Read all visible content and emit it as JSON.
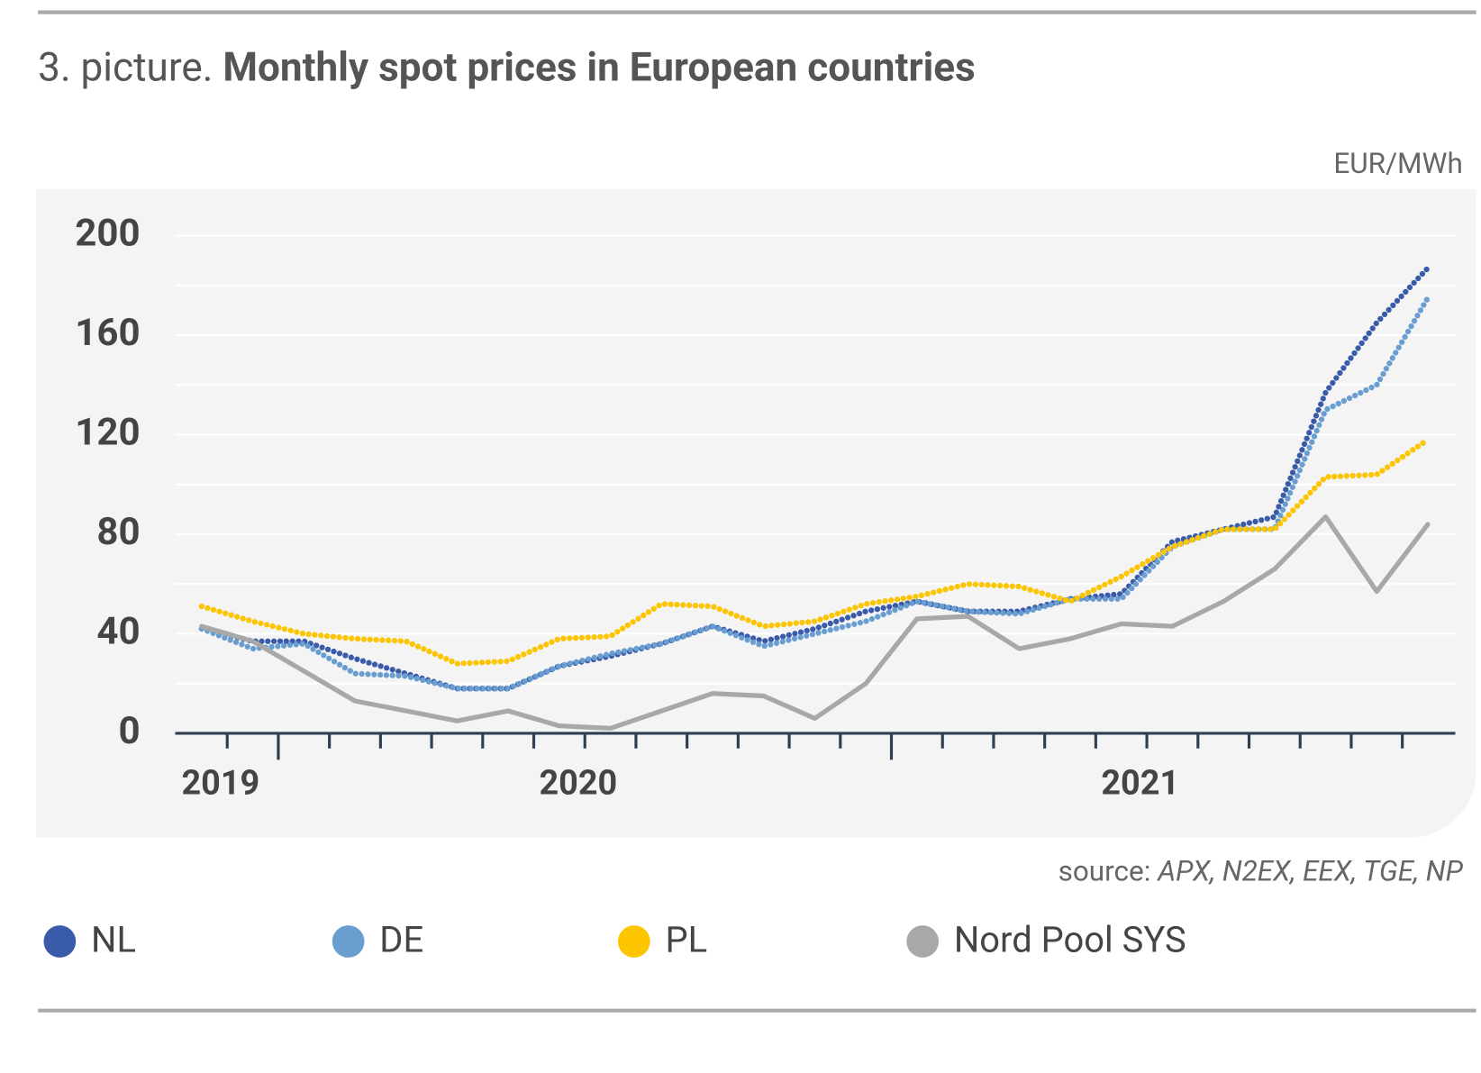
{
  "chart_data": {
    "type": "line",
    "title_prefix": "3. picture.",
    "title": "Monthly spot prices in European countries",
    "unit": "EUR/MWh",
    "source_label": "source:",
    "source": "APX, N2EX, EEX, TGE, NP",
    "categories": [
      "2019",
      null,
      null,
      null,
      null,
      null,
      null,
      "2020",
      null,
      null,
      null,
      null,
      null,
      null,
      null,
      null,
      null,
      null,
      "2021",
      null,
      null,
      null,
      null,
      null,
      null
    ],
    "series": [
      {
        "name": "NL",
        "color": "#3a5ba9",
        "style": "dotted",
        "values": [
          42,
          37,
          37,
          30,
          24,
          18,
          18,
          27,
          31,
          36,
          43,
          37,
          42,
          49,
          53,
          49,
          49,
          54,
          56,
          77,
          82,
          87,
          137,
          165,
          187
        ]
      },
      {
        "name": "DE",
        "color": "#6a9ed1",
        "style": "dotted",
        "values": [
          42,
          34,
          36,
          24,
          23,
          18,
          18,
          27,
          32,
          36,
          43,
          35,
          40,
          45,
          53,
          49,
          48,
          54,
          54,
          75,
          82,
          82,
          130,
          140,
          175
        ]
      },
      {
        "name": "PL",
        "color": "#fcc500",
        "style": "dotted",
        "values": [
          51,
          45,
          40,
          38,
          37,
          28,
          29,
          38,
          39,
          52,
          51,
          43,
          45,
          52,
          55,
          60,
          59,
          53,
          63,
          75,
          82,
          82,
          103,
          104,
          118
        ]
      },
      {
        "name": "Nord Pool SYS",
        "color": "#a8a8a8",
        "style": "solid",
        "values": [
          43,
          37,
          25,
          13,
          9,
          5,
          9,
          3,
          2,
          9,
          16,
          15,
          6,
          20,
          46,
          47,
          34,
          38,
          44,
          43,
          53,
          66,
          87,
          57,
          84
        ]
      }
    ],
    "ylim": [
      0,
      200
    ],
    "yticks": [
      0,
      40,
      80,
      120,
      160,
      200
    ],
    "minor_yticks": [
      20,
      60,
      100,
      140,
      180
    ],
    "grid": true,
    "legend": "bottom"
  }
}
